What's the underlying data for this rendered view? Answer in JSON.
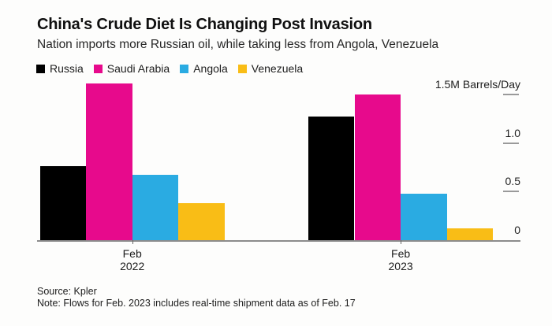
{
  "header": {
    "title": "China's Crude Diet Is Changing Post Invasion",
    "subtitle": "Nation imports more Russian oil, while taking less from Angola, Venezuela"
  },
  "chart_data": {
    "type": "bar",
    "title": "China's Crude Diet Is Changing Post Invasion",
    "subtitle": "Nation imports more Russian oil, while taking less from Angola, Venezuela",
    "unit": "M Barrels/Day",
    "categories": [
      [
        "Feb",
        "2022"
      ],
      [
        "Feb",
        "2023"
      ]
    ],
    "series": [
      {
        "name": "Russia",
        "color": "#000000",
        "values": [
          0.76,
          1.27
        ]
      },
      {
        "name": "Saudi Arabia",
        "color": "#e70a8c",
        "values": [
          1.61,
          1.5
        ]
      },
      {
        "name": "Angola",
        "color": "#2aabe2",
        "values": [
          0.67,
          0.48
        ]
      },
      {
        "name": "Venezuela",
        "color": "#f9bd16",
        "values": [
          0.38,
          0.12
        ]
      }
    ],
    "yticks": [
      {
        "value": 1.5,
        "label": "1.5M Barrels/Day"
      },
      {
        "value": 1.0,
        "label": "1.0"
      },
      {
        "value": 0.5,
        "label": "0.5"
      },
      {
        "value": 0.0,
        "label": "0"
      }
    ],
    "ylim": [
      0,
      1.68
    ],
    "xlabel": "",
    "ylabel": "M Barrels/Day",
    "legend_position": "top-left",
    "grid": false,
    "axis_colors": {
      "axis_line": "#8c8c8c",
      "tick_dash": "#9a9a9a",
      "tick_text": "#1f1f1f"
    }
  },
  "footer": {
    "source": "Source: Kpler",
    "note": "Note: Flows for Feb. 2023 includes real-time shipment data as of Feb. 17"
  }
}
